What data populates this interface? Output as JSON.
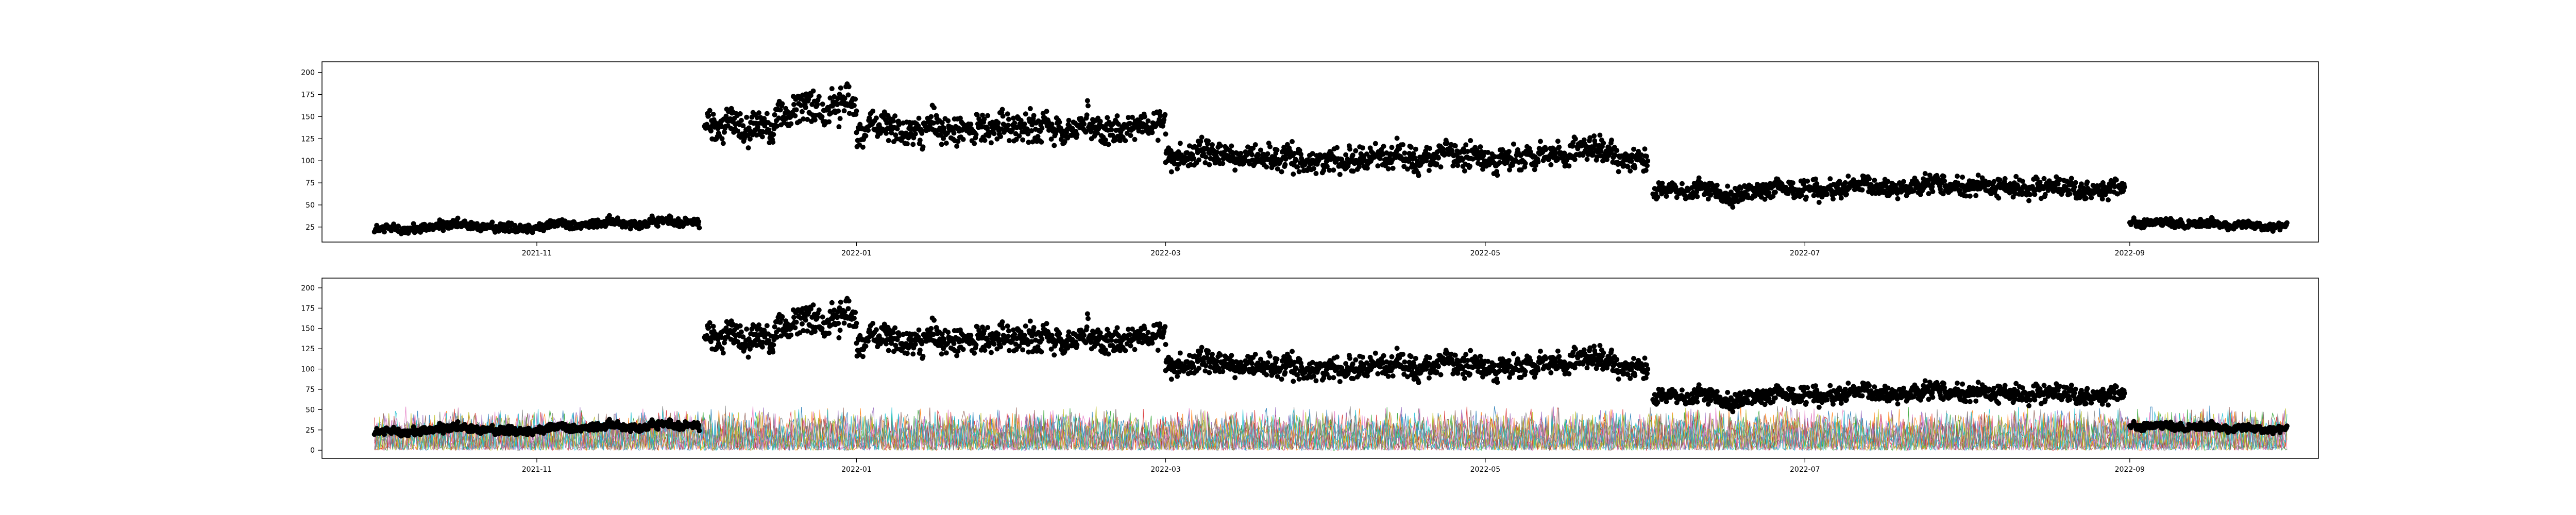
{
  "chart_data": [
    {
      "type": "scatter",
      "panel": "top",
      "title": "",
      "xlabel": "",
      "ylabel": "",
      "x_axis": {
        "type": "date",
        "range": [
          "2021-09-21",
          "2022-10-07"
        ],
        "tick_labels": [
          "2021-11",
          "2022-01",
          "2022-03",
          "2022-05",
          "2022-07",
          "2022-09"
        ],
        "tick_dates": [
          "2021-11-01",
          "2022-01-01",
          "2022-03-01",
          "2022-05-01",
          "2022-07-01",
          "2022-09-01"
        ]
      },
      "y_axis": {
        "range": [
          8,
          212
        ],
        "tick_labels": [
          "25",
          "50",
          "75",
          "100",
          "125",
          "150",
          "175",
          "200"
        ],
        "tick_values": [
          25,
          50,
          75,
          100,
          125,
          150,
          175,
          200
        ]
      },
      "grid": false,
      "legend": "none",
      "series": [
        {
          "marker_color": "#000000",
          "segments": [
            {
              "start": "2021-10-01",
              "end": "2021-12-02",
              "level_start": 22,
              "level_end": 32,
              "spread": 6
            },
            {
              "start": "2021-12-03",
              "end": "2022-01-01",
              "level_start": 140,
              "level_end": 165,
              "spread": 22
            },
            {
              "start": "2022-01-01",
              "end": "2022-03-01",
              "level_start": 135,
              "level_end": 140,
              "spread": 20
            },
            {
              "start": "2022-03-01",
              "end": "2022-06-01",
              "level_start": 105,
              "level_end": 105,
              "spread": 16
            },
            {
              "start": "2022-06-02",
              "end": "2022-08-31",
              "level_start": 65,
              "level_end": 70,
              "spread": 12
            },
            {
              "start": "2022-09-01",
              "end": "2022-10-01",
              "level_start": 30,
              "level_end": 28,
              "spread": 5
            }
          ]
        }
      ]
    },
    {
      "type": "line",
      "panel": "bottom",
      "title": "",
      "xlabel": "",
      "ylabel": "",
      "x_axis": {
        "type": "date",
        "range": [
          "2021-09-21",
          "2022-10-07"
        ],
        "tick_labels": [
          "2021-11",
          "2022-01",
          "2022-03",
          "2022-05",
          "2022-07",
          "2022-09"
        ],
        "tick_dates": [
          "2021-11-01",
          "2022-01-01",
          "2022-03-01",
          "2022-05-01",
          "2022-07-01",
          "2022-09-01"
        ]
      },
      "y_axis": {
        "range": [
          -10,
          212
        ],
        "tick_labels": [
          "0",
          "25",
          "50",
          "75",
          "100",
          "125",
          "150",
          "175",
          "200"
        ],
        "tick_values": [
          0,
          25,
          50,
          75,
          100,
          125,
          150,
          175,
          200
        ]
      },
      "grid": false,
      "legend": "none",
      "series_colors": [
        "#1f77b4",
        "#ff7f0e",
        "#2ca02c",
        "#d62728",
        "#9467bd",
        "#8c564b",
        "#e377c2",
        "#7f7f7f",
        "#bcbd22",
        "#17becf"
      ],
      "series": [
        {
          "style": "line",
          "range_date": [
            "2021-10-01",
            "2022-10-01"
          ],
          "typical_max": 50,
          "typical_min": 0
        },
        {
          "style": "scatter",
          "marker_color": "#000000",
          "same_as_top_panel": true
        }
      ]
    }
  ]
}
